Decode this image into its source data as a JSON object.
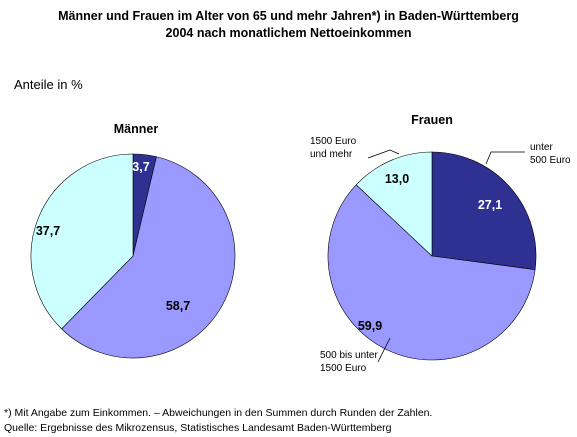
{
  "title_lines": [
    "Männer und Frauen im Alter von 65 und mehr Jahren*) in Baden-Württemberg",
    "2004 nach monatlichem Nettoeinkommen"
  ],
  "unit_label": "Anteile in %",
  "colors": {
    "unter_500": "#2e3192",
    "500_1500": "#9999ff",
    "ab_1500": "#ccffff",
    "outline": "#000000"
  },
  "chart_data": [
    {
      "type": "pie",
      "title": "Männer",
      "slices": [
        {
          "category": "unter 500 Euro",
          "value": 3.7,
          "label": "3,7",
          "color": "#2e3192"
        },
        {
          "category": "500 bis unter 1500 Euro",
          "value": 58.7,
          "label": "58,7",
          "color": "#9999ff"
        },
        {
          "category": "1500 Euro und mehr",
          "value": 37.7,
          "label": "37,7",
          "color": "#ccffff"
        }
      ]
    },
    {
      "type": "pie",
      "title": "Frauen",
      "slices": [
        {
          "category": "unter 500 Euro",
          "value": 27.1,
          "label": "27,1",
          "color": "#2e3192",
          "annotation": [
            "unter",
            "500 Euro"
          ]
        },
        {
          "category": "500 bis unter 1500 Euro",
          "value": 59.9,
          "label": "59,9",
          "color": "#9999ff",
          "annotation": [
            "500 bis unter",
            "1500 Euro"
          ]
        },
        {
          "category": "1500 Euro und mehr",
          "value": 13.0,
          "label": "13,0",
          "color": "#ccffff",
          "annotation": [
            "1500 Euro",
            "und mehr"
          ]
        }
      ]
    }
  ],
  "footnotes": [
    "*) Mit Angabe zum Einkommen. – Abweichungen in den Summen durch Runden der Zahlen.",
    "Quelle: Ergebnisse des Mikrozensus, Statistisches Landesamt Baden-Württemberg"
  ]
}
